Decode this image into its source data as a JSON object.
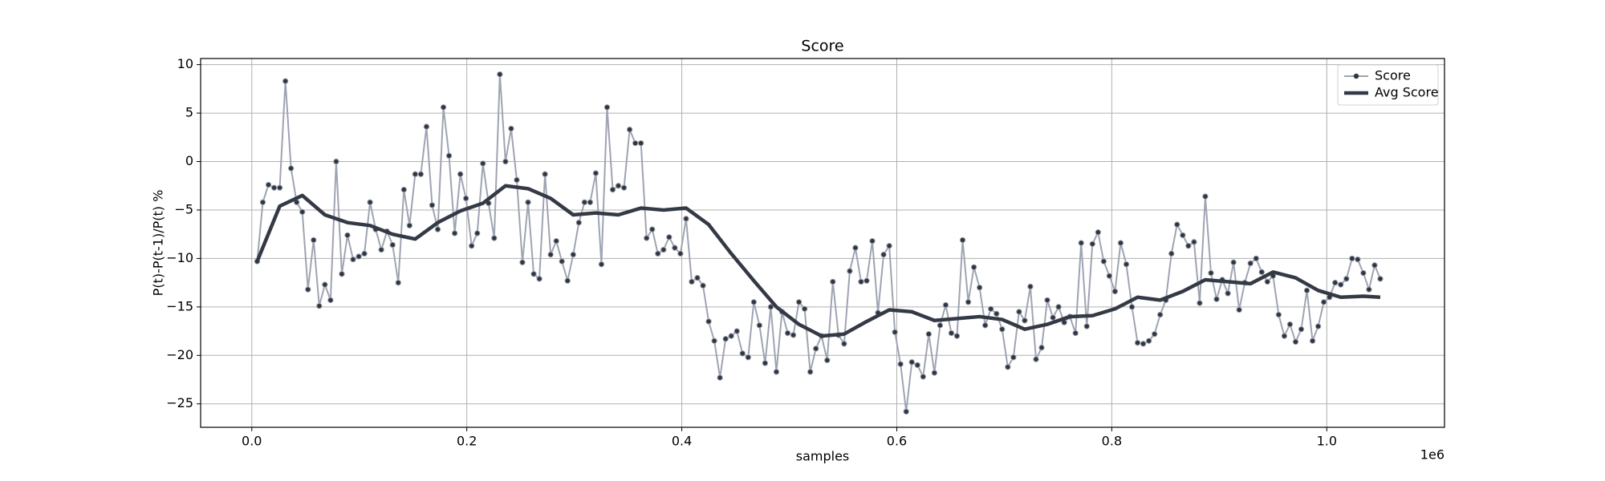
{
  "chart_data": {
    "type": "line",
    "title": "Score",
    "x_label": "samples",
    "y_label": "P(t)-P(t-1)/P(t) %",
    "x_offset_label": "1e6",
    "xlim": [
      -0.0476,
      1.1095
    ],
    "ylim": [
      -27.42,
      10.63
    ],
    "xticks": [
      {
        "value": 0,
        "label": "0.0"
      },
      {
        "value": 0.2,
        "label": "0.2"
      },
      {
        "value": 0.4,
        "label": "0.4"
      },
      {
        "value": 0.6,
        "label": "0.6"
      },
      {
        "value": 0.8,
        "label": "0.8"
      },
      {
        "value": 1.0,
        "label": "1.0"
      }
    ],
    "yticks": [
      {
        "value": -25,
        "label": "−25"
      },
      {
        "value": -20,
        "label": "−20"
      },
      {
        "value": -15,
        "label": "−15"
      },
      {
        "value": -10,
        "label": "−10"
      },
      {
        "value": -5,
        "label": "−5"
      },
      0,
      5,
      10
    ],
    "grid": true,
    "legend": "upper right",
    "series": [
      {
        "name": "Score",
        "color": "#9ea4b1",
        "marker_color": "#2f3640",
        "x": [
          0.005,
          0.01025,
          0.0155,
          0.02075,
          0.026,
          0.03125,
          0.0365,
          0.04175,
          0.047,
          0.05225,
          0.0575,
          0.06275,
          0.068,
          0.07325,
          0.0785,
          0.08375,
          0.089,
          0.09425,
          0.0995,
          0.10475,
          0.11,
          0.11525,
          0.1205,
          0.12575,
          0.131,
          0.13625,
          0.1415,
          0.14675,
          0.152,
          0.15725,
          0.1625,
          0.16775,
          0.173,
          0.17825,
          0.1835,
          0.18875,
          0.194,
          0.19925,
          0.2045,
          0.20975,
          0.215,
          0.22025,
          0.2255,
          0.23075,
          0.236,
          0.24125,
          0.2465,
          0.25175,
          0.257,
          0.26225,
          0.2675,
          0.27275,
          0.278,
          0.28325,
          0.2885,
          0.29375,
          0.299,
          0.30425,
          0.3095,
          0.31475,
          0.32,
          0.32525,
          0.3305,
          0.33575,
          0.341,
          0.34625,
          0.3515,
          0.35675,
          0.362,
          0.36725,
          0.3725,
          0.37775,
          0.383,
          0.38825,
          0.3935,
          0.39875,
          0.404,
          0.40925,
          0.4145,
          0.41975,
          0.425,
          0.43025,
          0.4355,
          0.44075,
          0.446,
          0.45125,
          0.4565,
          0.46175,
          0.467,
          0.47225,
          0.4775,
          0.48275,
          0.488,
          0.49325,
          0.4985,
          0.50375,
          0.509,
          0.51425,
          0.5195,
          0.52475,
          0.53,
          0.53525,
          0.5405,
          0.54575,
          0.551,
          0.55625,
          0.5615,
          0.56675,
          0.572,
          0.57725,
          0.5825,
          0.58775,
          0.593,
          0.59825,
          0.6035,
          0.60875,
          0.614,
          0.61925,
          0.6245,
          0.62975,
          0.635,
          0.64025,
          0.6455,
          0.65075,
          0.656,
          0.66125,
          0.6665,
          0.67175,
          0.677,
          0.68225,
          0.6875,
          0.69275,
          0.698,
          0.70325,
          0.7085,
          0.71375,
          0.719,
          0.72425,
          0.7295,
          0.73475,
          0.74,
          0.74525,
          0.7505,
          0.75575,
          0.761,
          0.76625,
          0.7715,
          0.77675,
          0.782,
          0.78725,
          0.7925,
          0.79775,
          0.803,
          0.80825,
          0.8135,
          0.81875,
          0.824,
          0.82925,
          0.8345,
          0.83975,
          0.845,
          0.85025,
          0.8555,
          0.86075,
          0.866,
          0.87125,
          0.8765,
          0.88175,
          0.887,
          0.89225,
          0.8975,
          0.90275,
          0.908,
          0.91325,
          0.9185,
          0.92375,
          0.929,
          0.93425,
          0.9395,
          0.94475,
          0.95,
          0.95525,
          0.9605,
          0.96575,
          0.971,
          0.97625,
          0.9815,
          0.98675,
          0.992,
          0.99725,
          1.0025,
          1.00775,
          1.013,
          1.01825,
          1.0235,
          1.02875,
          1.034,
          1.03925,
          1.0445,
          1.04975
        ],
        "values": [
          -10.3,
          -4.2,
          -2.4,
          -2.7,
          -2.7,
          8.3,
          -0.7,
          -4.2,
          -5.2,
          -13.2,
          -8.1,
          -14.9,
          -12.7,
          -14.3,
          0,
          -11.6,
          -7.6,
          -10.1,
          -9.8,
          -9.5,
          -4.2,
          -7.0,
          -9.1,
          -7.2,
          -8.6,
          -12.5,
          -2.9,
          -6.6,
          -1.3,
          -1.3,
          3.6,
          -4.5,
          -7.0,
          5.6,
          0.6,
          -7.4,
          -1.3,
          -3.8,
          -8.7,
          -7.4,
          -0.2,
          -4.3,
          -7.9,
          9.0,
          0,
          3.4,
          -1.9,
          -10.4,
          -4.2,
          -11.6,
          -12.1,
          -1.3,
          -9.6,
          -8.2,
          -10.3,
          -12.3,
          -9.6,
          -6.3,
          -4.2,
          -4.2,
          -1.2,
          -10.6,
          5.6,
          -2.9,
          -2.5,
          -2.7,
          3.3,
          1.9,
          1.9,
          -7.9,
          -7.0,
          -9.5,
          -9.1,
          -7.8,
          -8.9,
          -9.5,
          -5.9,
          -12.4,
          -12.0,
          -12.8,
          -16.5,
          -18.5,
          -22.3,
          -18.3,
          -18.0,
          -17.5,
          -19.8,
          -20.2,
          -14.5,
          -16.9,
          -20.8,
          -15.0,
          -21.7,
          -15.5,
          -17.7,
          -17.9,
          -14.5,
          -15.2,
          -21.7,
          -19.3,
          -18.0,
          -20.5,
          -12.4,
          -17.9,
          -18.8,
          -11.3,
          -8.9,
          -12.4,
          -12.3,
          -8.2,
          -15.6,
          -9.6,
          -8.7,
          -17.6,
          -20.9,
          -25.8,
          -20.7,
          -21.0,
          -22.2,
          -17.8,
          -21.8,
          -16.9,
          -14.8,
          -17.7,
          -18.0,
          -8.1,
          -14.5,
          -10.9,
          -13.0,
          -16.9,
          -15.2,
          -15.7,
          -17.3,
          -21.2,
          -20.2,
          -15.5,
          -16.4,
          -12.9,
          -20.4,
          -19.2,
          -14.3,
          -16.1,
          -15.0,
          -16.6,
          -16.0,
          -17.7,
          -8.4,
          -17.0,
          -8.5,
          -7.3,
          -10.3,
          -11.8,
          -13.4,
          -8.4,
          -10.6,
          -15.0,
          -18.7,
          -18.8,
          -18.5,
          -17.8,
          -15.8,
          -14.3,
          -9.5,
          -6.5,
          -7.6,
          -8.7,
          -8.3,
          -14.6,
          -3.6,
          -11.5,
          -14.2,
          -12.2,
          -13.6,
          -10.4,
          -15.3,
          -12.5,
          -10.5,
          -10.0,
          -11.4,
          -12.4,
          -11.8,
          -15.8,
          -18.0,
          -16.8,
          -18.6,
          -17.3,
          -13.3,
          -18.5,
          -17.0,
          -14.5,
          -14.0,
          -12.5,
          -12.7,
          -12.1,
          -10.0,
          -10.1,
          -11.5,
          -13.2,
          -10.7,
          -12.1
        ]
      },
      {
        "name": "Avg Score",
        "color": "#343a45",
        "x": [
          0.005,
          0.026,
          0.047,
          0.068,
          0.089,
          0.11,
          0.131,
          0.152,
          0.173,
          0.194,
          0.215,
          0.236,
          0.257,
          0.278,
          0.299,
          0.32,
          0.341,
          0.362,
          0.383,
          0.404,
          0.425,
          0.446,
          0.467,
          0.488,
          0.509,
          0.53,
          0.551,
          0.572,
          0.593,
          0.614,
          0.635,
          0.656,
          0.677,
          0.698,
          0.719,
          0.74,
          0.761,
          0.782,
          0.803,
          0.824,
          0.845,
          0.866,
          0.887,
          0.908,
          0.929,
          0.95,
          0.971,
          0.992,
          1.013,
          1.034,
          1.04975
        ],
        "values": [
          -10.3,
          -4.6,
          -3.5,
          -5.5,
          -6.3,
          -6.6,
          -7.5,
          -8.0,
          -6.3,
          -5.1,
          -4.3,
          -2.5,
          -2.8,
          -3.8,
          -5.5,
          -5.3,
          -5.5,
          -4.8,
          -5.0,
          -4.8,
          -6.5,
          -9.5,
          -12.3,
          -15.0,
          -16.8,
          -18.0,
          -17.8,
          -16.5,
          -15.3,
          -15.5,
          -16.4,
          -16.2,
          -16.0,
          -16.3,
          -17.3,
          -16.8,
          -16.0,
          -15.9,
          -15.2,
          -14.0,
          -14.3,
          -13.4,
          -12.2,
          -12.4,
          -12.6,
          -11.4,
          -12.0,
          -13.3,
          -14.0,
          -13.9,
          -14.0
        ]
      }
    ]
  }
}
